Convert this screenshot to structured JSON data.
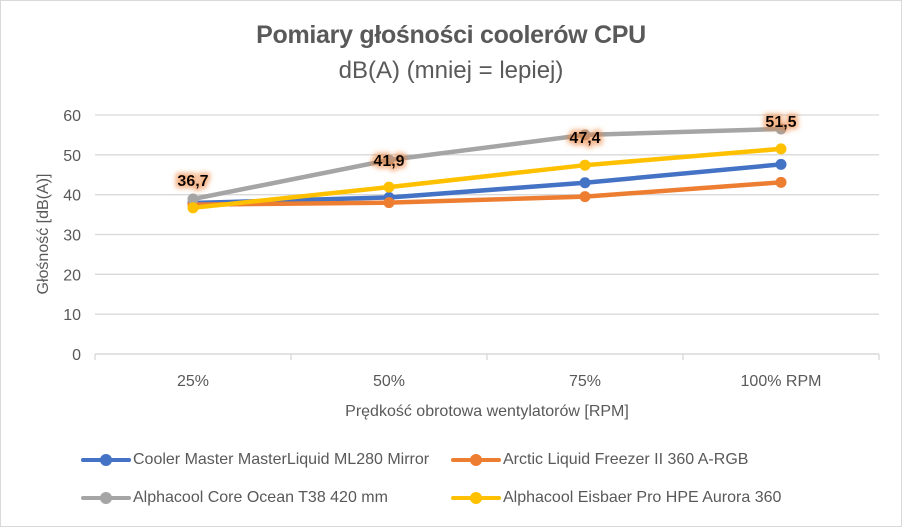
{
  "chart_data": {
    "type": "line",
    "title": "Pomiary głośności coolerów CPU",
    "subtitle": "dB(A) (mniej = lepiej)",
    "xlabel": "Prędkość obrotowa wentylatorów [RPM]",
    "ylabel": "Głośność [dB(A)]",
    "categories": [
      "25%",
      "50%",
      "75%",
      "100% RPM"
    ],
    "ylim": [
      0,
      60
    ],
    "yticks": [
      "0",
      "10",
      "20",
      "30",
      "40",
      "50",
      "60"
    ],
    "grid": true,
    "legend_position": "bottom",
    "series": [
      {
        "name": "Cooler Master MasterLiquid ML280 Mirror",
        "color": "#4472c4",
        "values": [
          37.9,
          39.3,
          43.0,
          47.6
        ]
      },
      {
        "name": "Arctic Liquid Freezer II 360 A-RGB",
        "color": "#ed7d31",
        "values": [
          37.5,
          38.0,
          39.5,
          43.1
        ]
      },
      {
        "name": "Alphacool Core Ocean T38 420 mm",
        "color": "#a5a5a5",
        "values": [
          38.9,
          48.7,
          55.0,
          56.5
        ]
      },
      {
        "name": "Alphacool Eisbaer Pro HPE Aurora 360",
        "color": "#ffc000",
        "values": [
          36.7,
          41.9,
          47.4,
          51.5
        ]
      }
    ],
    "data_labels": {
      "series_index": 3,
      "labels": [
        "36,7",
        "41,9",
        "47,4",
        "51,5"
      ],
      "label_glow_color": "#ed7d31"
    }
  }
}
